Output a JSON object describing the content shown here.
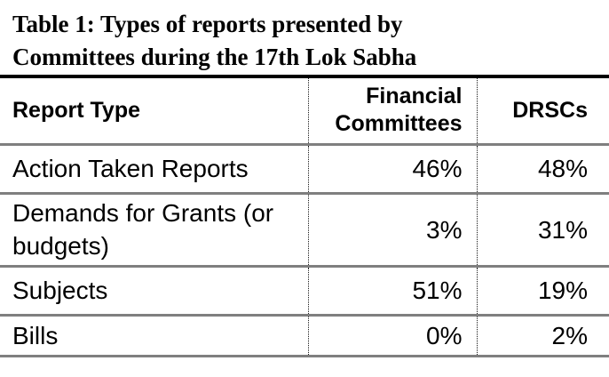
{
  "title": {
    "full": "Table 1: Types of reports presented by Committees during the 17th Lok Sabha",
    "line1": "Table 1: Types of reports presented by",
    "line2": "Committees during the 17th Lok Sabha"
  },
  "table": {
    "columns": [
      {
        "label": "Report Type"
      },
      {
        "label": "Financial Committees"
      },
      {
        "label": "DRSCs"
      }
    ],
    "rows": [
      {
        "report_type": "Action Taken Reports",
        "financial_committees": "46%",
        "drscs": "48%"
      },
      {
        "report_type": "Demands for Grants (or budgets)",
        "financial_committees": "3%",
        "drscs": "31%"
      },
      {
        "report_type": "Subjects",
        "financial_committees": "51%",
        "drscs": "19%"
      },
      {
        "report_type": "Bills",
        "financial_committees": "0%",
        "drscs": "2%"
      }
    ]
  },
  "colors": {
    "text": "#000000",
    "title_rule": "#000000",
    "row_rule": "#7f7f7f",
    "column_rule_dotted": "#1a1a1a",
    "background": "#ffffff"
  }
}
